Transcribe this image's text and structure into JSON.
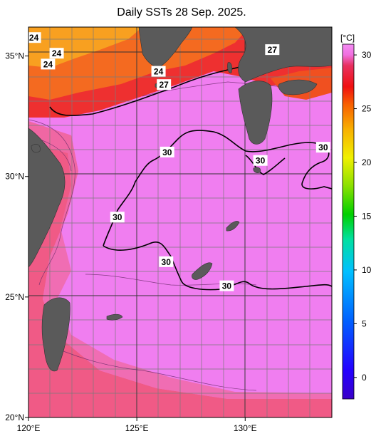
{
  "title": "Daily SSTs 28 Sep. 2025.",
  "map": {
    "lon_ticks": [
      {
        "value": 120,
        "label": "120°E"
      },
      {
        "value": 125,
        "label": "125°E"
      },
      {
        "value": 130,
        "label": "130°E"
      }
    ],
    "lat_ticks": [
      {
        "value": 35,
        "label": "35°N"
      },
      {
        "value": 30,
        "label": "30°N"
      },
      {
        "value": 25,
        "label": "25°N"
      },
      {
        "value": 20,
        "label": "20°N"
      }
    ],
    "extent": {
      "lon": [
        120,
        134
      ],
      "lat": [
        20,
        36.2
      ]
    },
    "contour_labels": [
      {
        "text": "24",
        "lon": 120.25,
        "lat": 35.75
      },
      {
        "text": "24",
        "lon": 121.3,
        "lat": 35.1
      },
      {
        "text": "24",
        "lon": 120.9,
        "lat": 34.65
      },
      {
        "text": "24",
        "lon": 126.0,
        "lat": 34.35
      },
      {
        "text": "27",
        "lon": 126.25,
        "lat": 33.8
      },
      {
        "text": "27",
        "lon": 131.25,
        "lat": 35.25
      },
      {
        "text": "30",
        "lon": 126.4,
        "lat": 31.0
      },
      {
        "text": "30",
        "lon": 130.7,
        "lat": 30.65
      },
      {
        "text": "30",
        "lon": 133.6,
        "lat": 31.2
      },
      {
        "text": "30",
        "lon": 124.1,
        "lat": 28.3
      },
      {
        "text": "30",
        "lon": 126.35,
        "lat": 26.45
      },
      {
        "text": "30",
        "lon": 129.15,
        "lat": 25.45
      }
    ]
  },
  "colorbar": {
    "unit": "[°C]",
    "range": [
      -2,
      31
    ],
    "ticks": [
      {
        "value": 30,
        "label": "30"
      },
      {
        "value": 25,
        "label": "25"
      },
      {
        "value": 20,
        "label": "20"
      },
      {
        "value": 15,
        "label": "15"
      },
      {
        "value": 10,
        "label": "10"
      },
      {
        "value": 5,
        "label": "5"
      },
      {
        "value": 0,
        "label": "0"
      }
    ]
  },
  "colors": {
    "land": "#5a5a5a",
    "sea_30": "#f07ef0",
    "sea_28": "#f06080",
    "sea_27": "#ee3838",
    "sea_24": "#f5a020"
  }
}
